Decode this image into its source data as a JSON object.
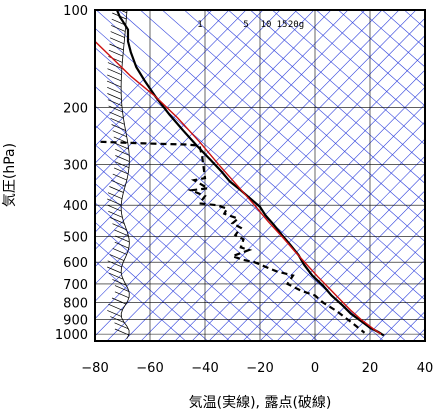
{
  "chart_data": {
    "type": "line",
    "title": "",
    "xlabel": "気温(実線), 露点(破線)",
    "ylabel": "気圧(hPa)",
    "xlim": [
      -80,
      40
    ],
    "ylim": [
      1050,
      100
    ],
    "y_scale": "log",
    "x_ticks": [
      "−80",
      "−60",
      "−40",
      "−20",
      "0",
      "20",
      "40"
    ],
    "x_tick_values": [
      -80,
      -60,
      -40,
      -20,
      0,
      20,
      40
    ],
    "y_ticks": [
      "100",
      "200",
      "300",
      "400",
      "500",
      "600",
      "700",
      "800",
      "900",
      "1000"
    ],
    "y_tick_values": [
      100,
      200,
      300,
      400,
      500,
      600,
      700,
      800,
      900,
      1000
    ],
    "mixing_ratio_labels": [
      "1",
      "5",
      "10",
      "15",
      "20g"
    ],
    "grid": true,
    "series": [
      {
        "style": "solid-black",
        "points": [
          [
            -72,
            100
          ],
          [
            -71,
            105
          ],
          [
            -70,
            108
          ],
          [
            -68,
            115
          ],
          [
            -68,
            125
          ],
          [
            -67,
            135
          ],
          [
            -65,
            150
          ],
          [
            -62,
            165
          ],
          [
            -58,
            185
          ],
          [
            -53,
            210
          ],
          [
            -48,
            235
          ],
          [
            -43,
            262
          ],
          [
            -38,
            290
          ],
          [
            -34,
            315
          ],
          [
            -31,
            338
          ],
          [
            -27,
            360
          ],
          [
            -23,
            385
          ],
          [
            -20,
            405
          ],
          [
            -18,
            430
          ],
          [
            -15,
            460
          ],
          [
            -12,
            495
          ],
          [
            -9,
            530
          ],
          [
            -6,
            570
          ],
          [
            -4,
            610
          ],
          [
            -1,
            660
          ],
          [
            3,
            710
          ],
          [
            6,
            760
          ],
          [
            10,
            815
          ],
          [
            13,
            865
          ],
          [
            17,
            915
          ],
          [
            20,
            955
          ],
          [
            23,
            985
          ],
          [
            25,
            1010
          ]
        ]
      },
      {
        "style": "solid-red",
        "points": [
          [
            -80,
            125
          ],
          [
            -74,
            140
          ],
          [
            -67,
            160
          ],
          [
            -58,
            185
          ],
          [
            -50,
            215
          ],
          [
            -42,
            255
          ],
          [
            -35,
            300
          ],
          [
            -28,
            350
          ],
          [
            -22,
            400
          ],
          [
            -17,
            450
          ],
          [
            -12,
            500
          ],
          [
            -7,
            560
          ],
          [
            -3,
            610
          ],
          [
            1,
            665
          ],
          [
            5,
            720
          ],
          [
            9,
            780
          ],
          [
            13,
            845
          ],
          [
            17,
            905
          ],
          [
            21,
            960
          ],
          [
            24,
            1000
          ]
        ]
      },
      {
        "style": "dashed-black",
        "points": [
          [
            -78,
            255
          ],
          [
            -62,
            258
          ],
          [
            -47,
            260
          ],
          [
            -42,
            262
          ],
          [
            -41,
            285
          ],
          [
            -40,
            330
          ],
          [
            -44,
            335
          ],
          [
            -39,
            355
          ],
          [
            -45,
            360
          ],
          [
            -40,
            375
          ],
          [
            -42,
            395
          ],
          [
            -36,
            400
          ],
          [
            -32,
            410
          ],
          [
            -33,
            425
          ],
          [
            -28,
            440
          ],
          [
            -30,
            455
          ],
          [
            -27,
            470
          ],
          [
            -29,
            495
          ],
          [
            -26,
            510
          ],
          [
            -27,
            540
          ],
          [
            -24,
            550
          ],
          [
            -30,
            575
          ],
          [
            -26,
            590
          ],
          [
            -22,
            600
          ],
          [
            -19,
            615
          ],
          [
            -14,
            640
          ],
          [
            -8,
            660
          ],
          [
            -10,
            700
          ],
          [
            -5,
            735
          ],
          [
            0,
            760
          ],
          [
            3,
            800
          ],
          [
            8,
            850
          ],
          [
            11,
            890
          ],
          [
            14,
            930
          ],
          [
            16,
            960
          ],
          [
            18,
            990
          ]
        ]
      }
    ],
    "wind_barbs_side": "left"
  }
}
